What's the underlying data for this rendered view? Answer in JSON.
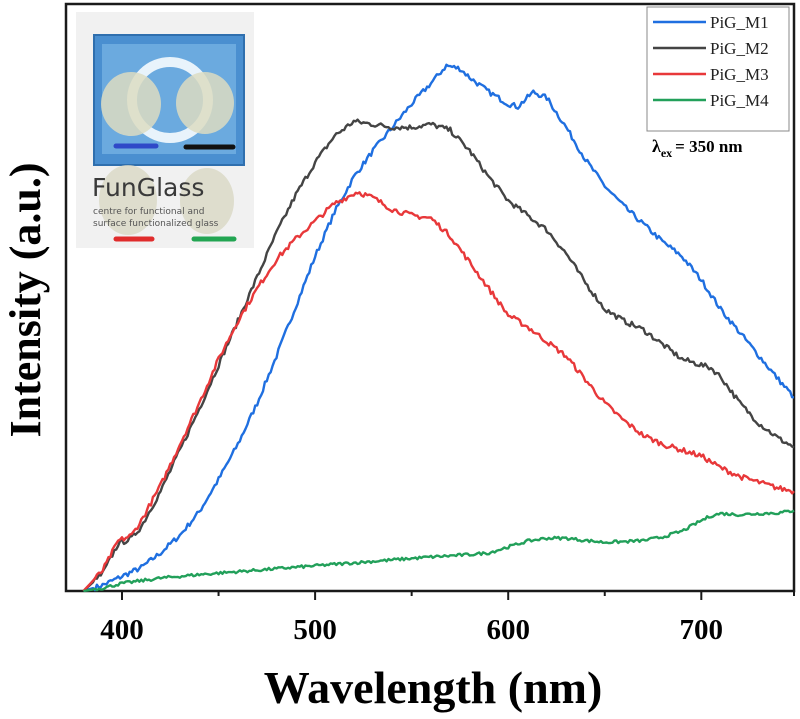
{
  "chart_data": {
    "type": "line",
    "title": "",
    "xlabel": "Wavelength (nm)",
    "ylabel": "Intensity (a.u.)",
    "xlim": [
      371,
      748
    ],
    "ylim": [
      0,
      100
    ],
    "xticks": [
      400,
      500,
      600,
      700
    ],
    "minor_xticks": [
      450,
      550,
      650,
      750
    ],
    "yticks_shown": false,
    "grid": false,
    "legend_position": "top-right",
    "annotation": {
      "symbol": "λ",
      "subscript": "ex",
      "text": "= 350 nm"
    },
    "series": [
      {
        "name": "PiG_M1",
        "color": "#1f6fe0",
        "x": [
          380,
          390,
          400,
          410,
          420,
          430,
          440,
          450,
          460,
          470,
          480,
          490,
          500,
          510,
          520,
          530,
          540,
          550,
          560,
          568,
          575,
          580,
          590,
          600,
          605,
          613,
          620,
          630,
          640,
          650,
          660,
          670,
          680,
          690,
          700,
          710,
          720,
          730,
          740,
          748
        ],
        "y": [
          0,
          1,
          2.5,
          4,
          6.5,
          9.5,
          13.5,
          19,
          25,
          32,
          40,
          48.5,
          57,
          64.5,
          70.5,
          75,
          79,
          83,
          86.5,
          89.5,
          89,
          87.5,
          85,
          83,
          82.5,
          85,
          84,
          79,
          73.5,
          69,
          65.5,
          62.5,
          59.5,
          57,
          53,
          48,
          44,
          40,
          36,
          33
        ]
      },
      {
        "name": "PiG_M2",
        "color": "#444444",
        "x": [
          380,
          390,
          398,
          405,
          410,
          420,
          430,
          440,
          450,
          460,
          470,
          480,
          490,
          500,
          510,
          520,
          530,
          540,
          550,
          560,
          570,
          580,
          590,
          600,
          610,
          620,
          630,
          640,
          650,
          660,
          670,
          680,
          690,
          700,
          705,
          710,
          720,
          730,
          740,
          748
        ],
        "y": [
          0,
          3,
          8,
          9,
          11,
          17,
          24,
          31,
          38.5,
          46,
          53.5,
          61,
          67.5,
          73,
          77.5,
          80,
          79.5,
          79,
          79,
          79.5,
          78.5,
          75,
          70.5,
          66.5,
          64,
          61.5,
          57.5,
          52.5,
          48,
          46,
          44.5,
          42,
          39.5,
          38.5,
          38,
          36.5,
          32,
          28.5,
          26,
          24.5
        ]
      },
      {
        "name": "PiG_M3",
        "color": "#e8383a",
        "x": [
          380,
          390,
          398,
          405,
          410,
          420,
          430,
          440,
          450,
          460,
          470,
          480,
          490,
          500,
          510,
          522,
          530,
          540,
          550,
          560,
          570,
          580,
          590,
          600,
          610,
          620,
          630,
          640,
          650,
          660,
          670,
          680,
          690,
          700,
          710,
          720,
          730,
          740,
          748
        ],
        "y": [
          0,
          3.5,
          8.5,
          9.5,
          12,
          18,
          25,
          32,
          39.5,
          46,
          51.5,
          56.5,
          60,
          63,
          66,
          68,
          67,
          65,
          64,
          63.5,
          60.5,
          56,
          51.5,
          47,
          45,
          42.5,
          40,
          36,
          32,
          29,
          26.5,
          25,
          24,
          23,
          21,
          19.5,
          18.5,
          17.5,
          17
        ]
      },
      {
        "name": "PiG_M4",
        "color": "#22a05a",
        "x": [
          380,
          390,
          400,
          420,
          440,
          460,
          480,
          500,
          520,
          540,
          560,
          580,
          590,
          600,
          610,
          620,
          630,
          640,
          650,
          660,
          670,
          680,
          690,
          700,
          705,
          710,
          720,
          730,
          740,
          748
        ],
        "y": [
          0,
          0.5,
          1.3,
          2.2,
          2.8,
          3.3,
          3.8,
          4.3,
          4.8,
          5.3,
          5.8,
          6.2,
          6.5,
          7.5,
          8.5,
          9,
          9,
          8.6,
          8.3,
          8.4,
          8.6,
          9.2,
          10.2,
          12,
          12.8,
          13.2,
          13,
          13.2,
          13.3,
          13.7
        ]
      }
    ]
  },
  "inset": {
    "logo_title": "FunGlass",
    "logo_subtitle_line1": "centre for functional and",
    "logo_subtitle_line2": "surface functionalized glass",
    "bar_colors": [
      "#2f49c8",
      "#111111",
      "#e02c2c",
      "#22a552"
    ]
  }
}
